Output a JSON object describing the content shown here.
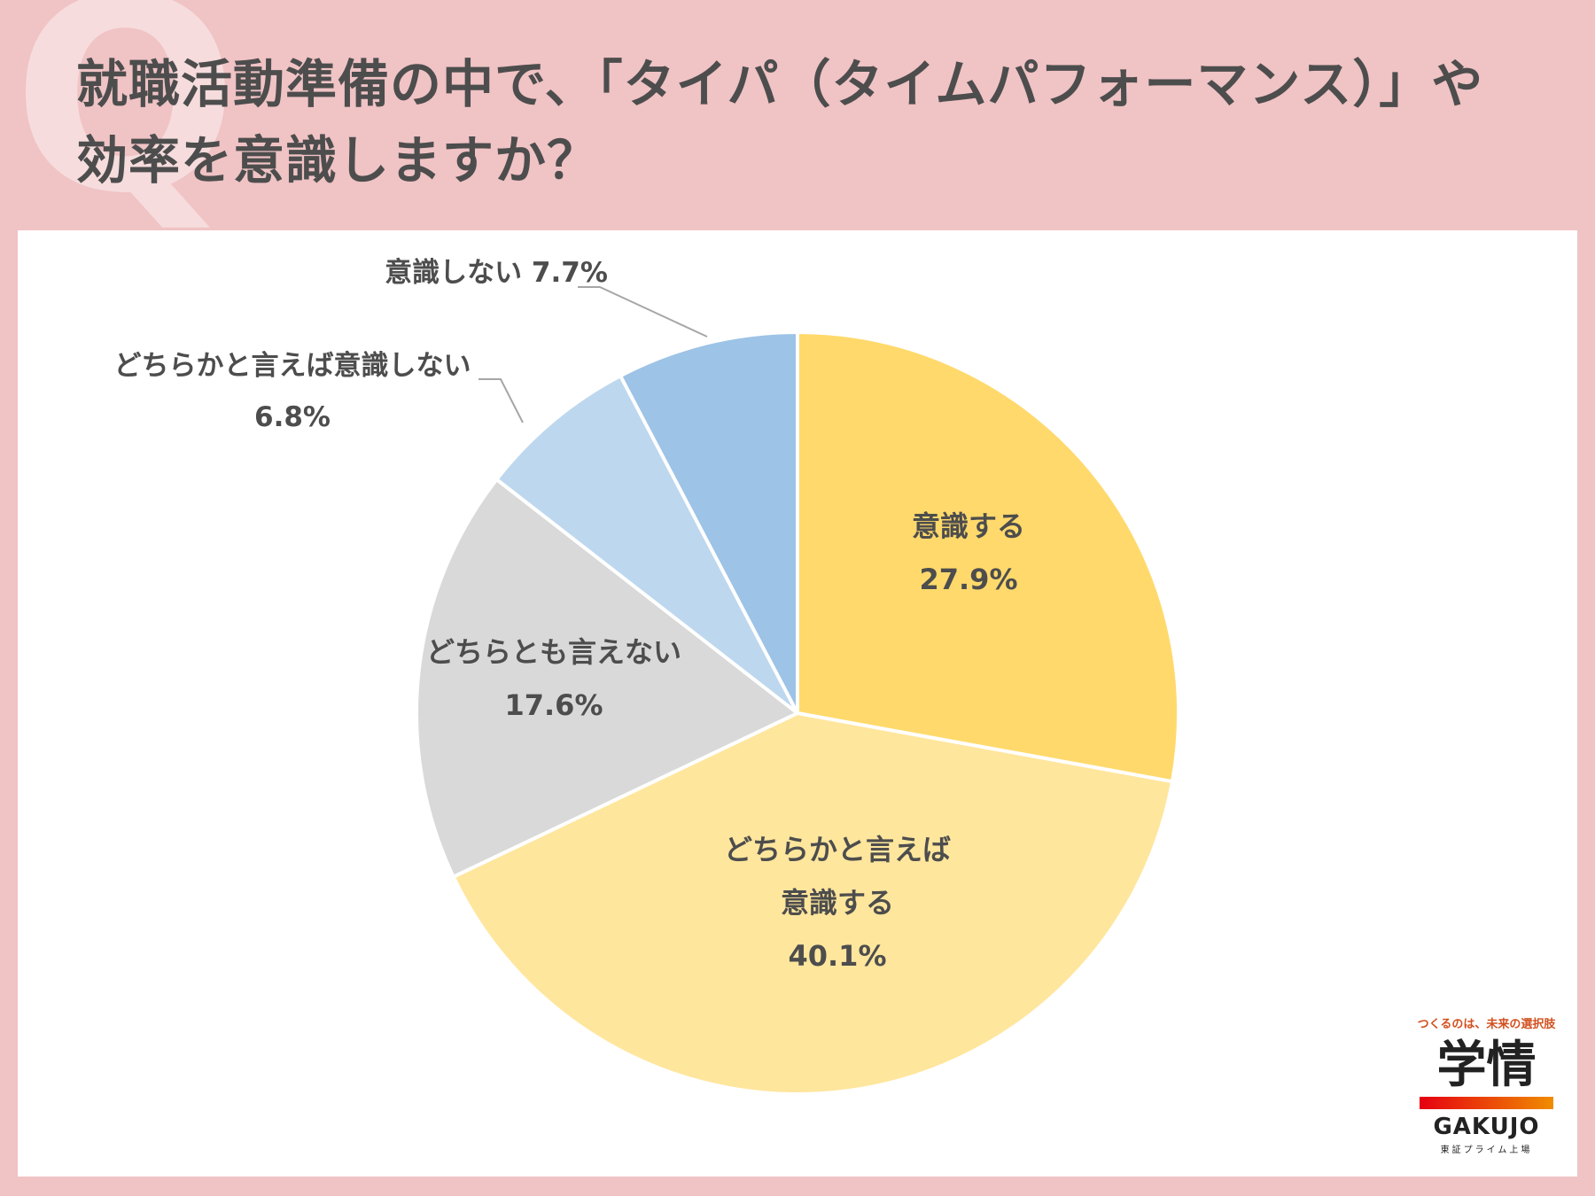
{
  "question": {
    "mark": "Q",
    "line1": "就職活動準備の中で、「タイパ（タイムパフォーマンス）」や",
    "line2": "効率を意識しますか？"
  },
  "chart_data": {
    "type": "pie",
    "title": "",
    "slices": [
      {
        "label": "意識する",
        "value": 27.9,
        "value_label": "27.9%",
        "color": "#ffd96b"
      },
      {
        "label": "どちらかと言えば意識する",
        "value": 40.1,
        "value_label": "40.1%",
        "color": "#ffe69d"
      },
      {
        "label": "どちらとも言えない",
        "value": 17.6,
        "value_label": "17.6%",
        "color": "#d9d9d9"
      },
      {
        "label": "どちらかと言えば意識しない",
        "value": 6.8,
        "value_label": "6.8%",
        "color": "#bdd7ee"
      },
      {
        "label": "意識しない",
        "value": 7.7,
        "value_label": "7.7%",
        "color": "#9dc3e6"
      }
    ],
    "start_angle_deg": 0,
    "direction": "clockwise"
  },
  "logo": {
    "tagline": "つくるのは、未来の選択肢",
    "mark": "学情",
    "wordmark": "GAKUJO",
    "sub": "東証プライム上場"
  }
}
